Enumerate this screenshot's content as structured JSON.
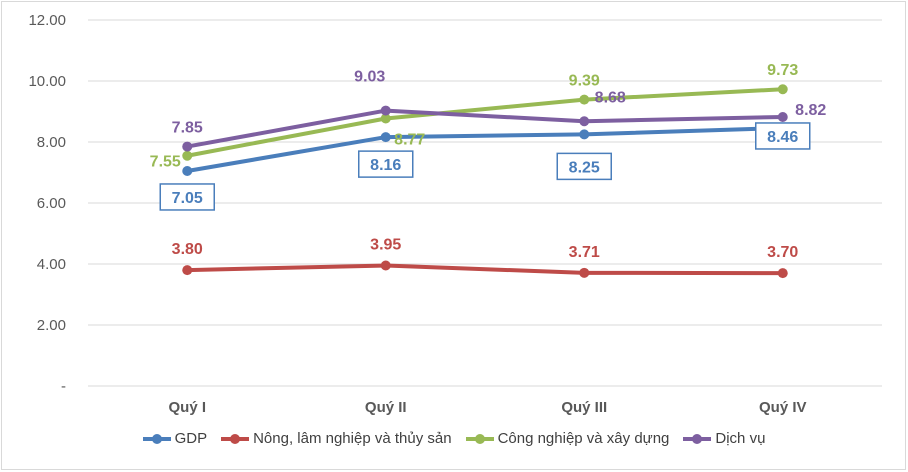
{
  "chart_data": {
    "type": "line",
    "categories": [
      "Quý I",
      "Quý II",
      "Quý III",
      "Quý IV"
    ],
    "ylim": [
      0,
      12
    ],
    "yticks": [
      0,
      2,
      4,
      6,
      8,
      10,
      12
    ],
    "ytick_labels": [
      "-",
      "2.00",
      "4.00",
      "6.00",
      "8.00",
      "10.00",
      "12.00"
    ],
    "grid": true,
    "legend": "bottom",
    "series": [
      {
        "name": "GDP",
        "color": "#4a7ebb",
        "values": [
          7.05,
          8.16,
          8.25,
          8.46
        ],
        "labels": [
          "7.05",
          "8.16",
          "8.25",
          "8.46"
        ],
        "boxed_labels": true
      },
      {
        "name": "Nông, lâm nghiệp và thủy sản",
        "color": "#be4b48",
        "values": [
          3.8,
          3.95,
          3.71,
          3.7
        ],
        "labels": [
          "3.80",
          "3.95",
          "3.71",
          "3.70"
        ]
      },
      {
        "name": "Công nghiệp và xây dựng",
        "color": "#98b954",
        "values": [
          7.55,
          8.77,
          9.39,
          9.73
        ],
        "labels": [
          "7.55",
          "8.77",
          "9.39",
          "9.73"
        ]
      },
      {
        "name": "Dịch vụ",
        "color": "#7d5fa0",
        "values": [
          7.85,
          9.03,
          8.68,
          8.82
        ],
        "labels": [
          "7.85",
          "9.03",
          "8.68",
          "8.82"
        ]
      }
    ]
  }
}
